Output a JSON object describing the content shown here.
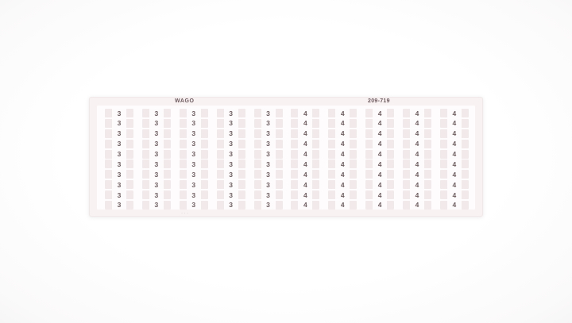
{
  "product_card": {
    "brand": "WAGO",
    "part_number": "209-719",
    "fine_print_mark": "···",
    "marker_grid": {
      "rows": 10,
      "columns": 10,
      "column_values": [
        "3",
        "3",
        "3",
        "3",
        "3",
        "4",
        "4",
        "4",
        "4",
        "4"
      ]
    }
  },
  "colors": {
    "card_background": "#f8f2f3",
    "inner_field": "#fefcfc",
    "marker_tab": "#f2e9ea",
    "digit_text": "#6f5d60",
    "label_text": "#6d585c"
  }
}
